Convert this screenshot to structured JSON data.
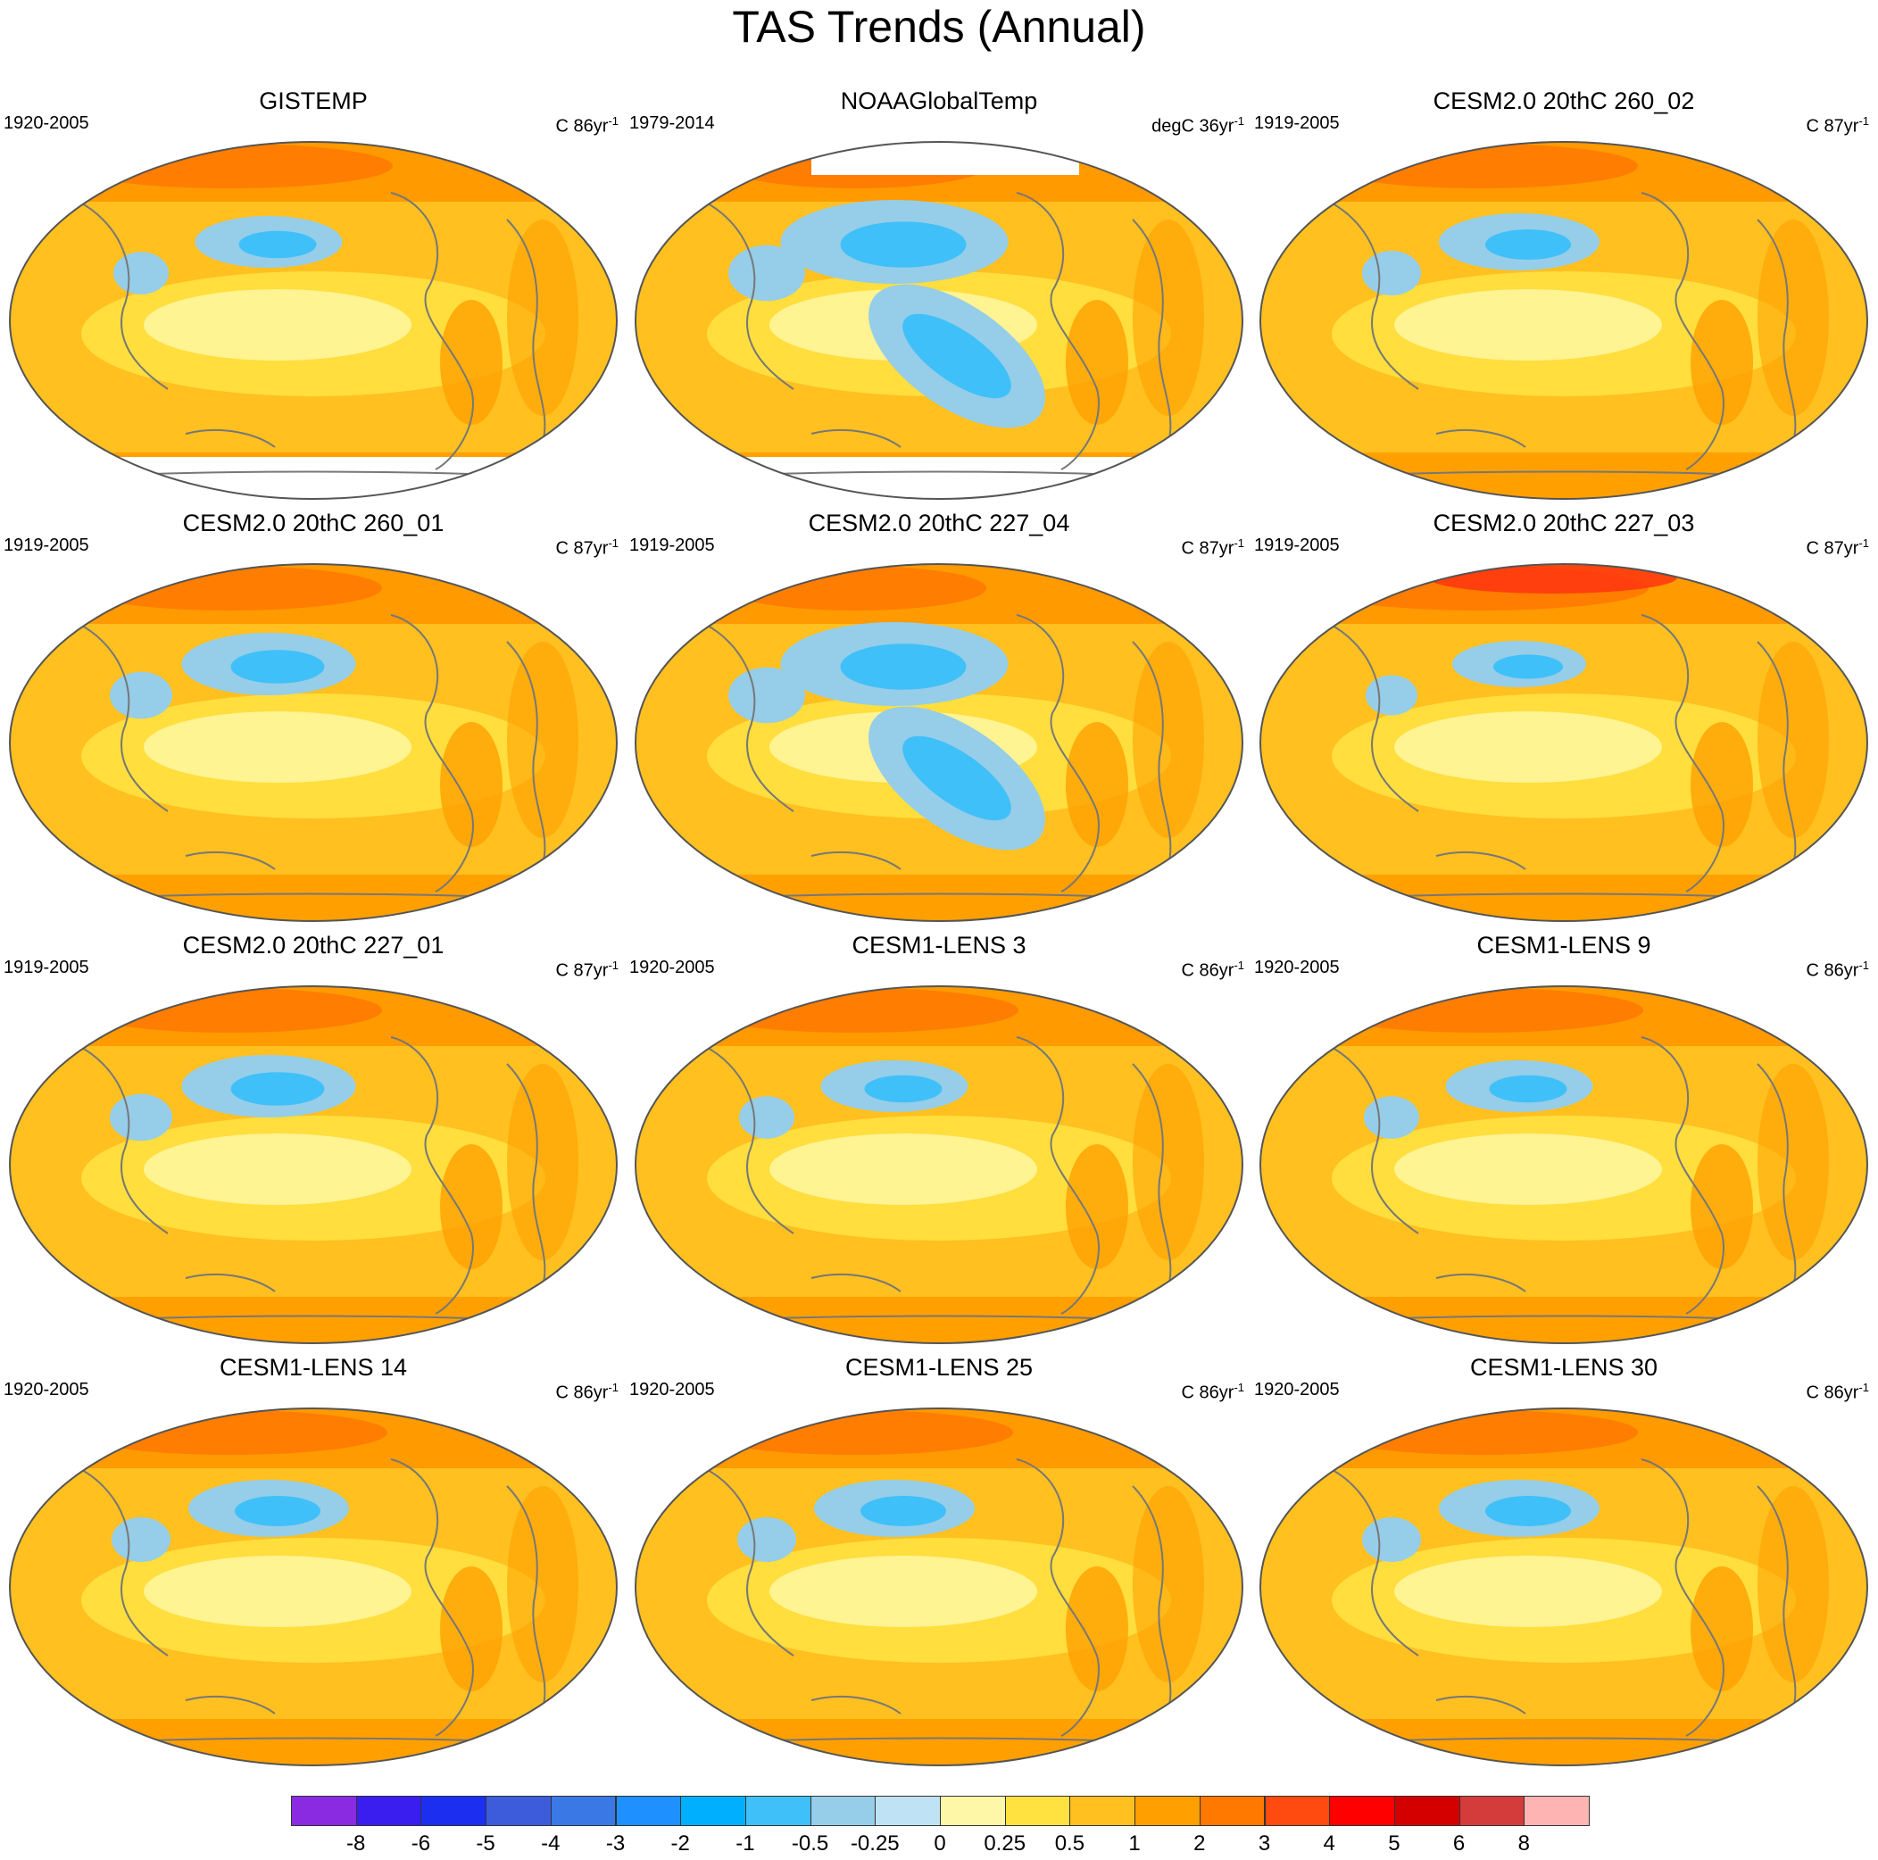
{
  "figure": {
    "title": "TAS Trends (Annual)"
  },
  "panels": [
    {
      "title": "GISTEMP",
      "period": "1920-2005",
      "unit": "C",
      "span": "86yr",
      "exp": "-1",
      "warm": 0.85,
      "cool": 0.15,
      "masked": "south"
    },
    {
      "title": "NOAAGlobalTemp",
      "period": "1979-2014",
      "unit": "degC",
      "span": "36yr",
      "exp": "-1",
      "warm": 0.55,
      "cool": 0.45,
      "masked": "both"
    },
    {
      "title": "CESM2.0 20thC 260_02",
      "period": "1919-2005",
      "unit": "C",
      "span": "87yr",
      "exp": "-1",
      "warm": 0.8,
      "cool": 0.2,
      "masked": "none"
    },
    {
      "title": "CESM2.0 20thC 260_01",
      "period": "1919-2005",
      "unit": "C",
      "span": "87yr",
      "exp": "-1",
      "warm": 0.75,
      "cool": 0.25,
      "masked": "none"
    },
    {
      "title": "CESM2.0 20thC 227_04",
      "period": "1919-2005",
      "unit": "C",
      "span": "87yr",
      "exp": "-1",
      "warm": 0.55,
      "cool": 0.45,
      "masked": "none"
    },
    {
      "title": "CESM2.0 20thC 227_03",
      "period": "1919-2005",
      "unit": "C",
      "span": "87yr",
      "exp": "-1",
      "warm": 0.9,
      "cool": 0.1,
      "masked": "none"
    },
    {
      "title": "CESM2.0 20thC 227_01",
      "period": "1919-2005",
      "unit": "C",
      "span": "87yr",
      "exp": "-1",
      "warm": 0.75,
      "cool": 0.25,
      "masked": "none"
    },
    {
      "title": "CESM1-LENS 3",
      "period": "1920-2005",
      "unit": "C",
      "span": "86yr",
      "exp": "-1",
      "warm": 0.85,
      "cool": 0.15,
      "masked": "none"
    },
    {
      "title": "CESM1-LENS 9",
      "period": "1920-2005",
      "unit": "C",
      "span": "86yr",
      "exp": "-1",
      "warm": 0.85,
      "cool": 0.15,
      "masked": "none"
    },
    {
      "title": "CESM1-LENS 14",
      "period": "1920-2005",
      "unit": "C",
      "span": "86yr",
      "exp": "-1",
      "warm": 0.8,
      "cool": 0.2,
      "masked": "none"
    },
    {
      "title": "CESM1-LENS 25",
      "period": "1920-2005",
      "unit": "C",
      "span": "86yr",
      "exp": "-1",
      "warm": 0.8,
      "cool": 0.2,
      "masked": "none"
    },
    {
      "title": "CESM1-LENS 30",
      "period": "1920-2005",
      "unit": "C",
      "span": "86yr",
      "exp": "-1",
      "warm": 0.8,
      "cool": 0.2,
      "masked": "none"
    }
  ],
  "colorbar": {
    "colors": [
      "#8a2be2",
      "#3a1ef0",
      "#1c2ef0",
      "#3c5cdc",
      "#3a78e6",
      "#1e90ff",
      "#00b0ff",
      "#40c0f8",
      "#96cde8",
      "#bfe3f4",
      "#fff7a8",
      "#ffe140",
      "#ffc020",
      "#ffa000",
      "#ff7800",
      "#ff4a10",
      "#ff0000",
      "#d40000",
      "#d43c3c",
      "#ffb4b4"
    ],
    "labels": [
      "-8",
      "-6",
      "-5",
      "-4",
      "-3",
      "-2",
      "-1",
      "-0.5",
      "-0.25",
      "0",
      "0.25",
      "0.5",
      "1",
      "2",
      "3",
      "4",
      "5",
      "6",
      "8"
    ]
  }
}
